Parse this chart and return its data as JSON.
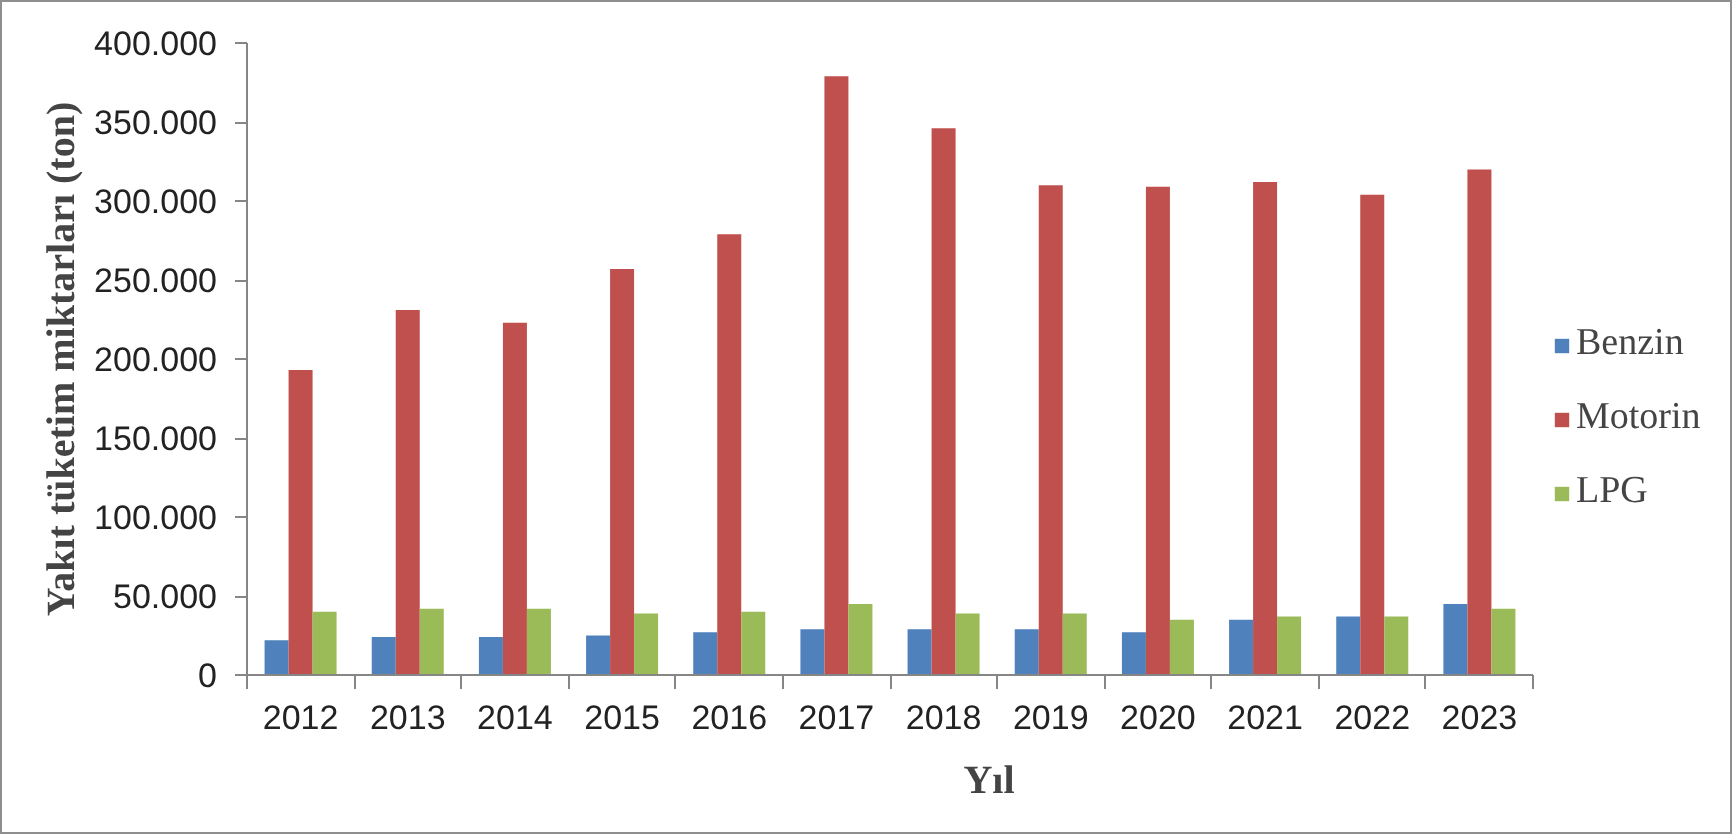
{
  "chart_data": {
    "type": "bar",
    "xlabel": "Yıl",
    "ylabel": "Yakıt tüketim miktarları (ton)",
    "categories": [
      "2012",
      "2013",
      "2014",
      "2015",
      "2016",
      "2017",
      "2018",
      "2019",
      "2020",
      "2021",
      "2022",
      "2023"
    ],
    "series": [
      {
        "name": "Benzin",
        "color": "#4f81bd",
        "values": [
          22000,
          24000,
          24000,
          25000,
          27000,
          29000,
          29000,
          29000,
          27000,
          35000,
          37000,
          45000
        ]
      },
      {
        "name": "Motorin",
        "color": "#c0504d",
        "values": [
          193000,
          231000,
          223000,
          257000,
          279000,
          379000,
          346000,
          310000,
          309000,
          312000,
          304000,
          320000
        ]
      },
      {
        "name": "LPG",
        "color": "#9bbb59",
        "values": [
          40000,
          42000,
          42000,
          39000,
          40000,
          45000,
          39000,
          39000,
          35000,
          37000,
          37000,
          42000
        ]
      }
    ],
    "ylim": [
      0,
      400000
    ],
    "yticks": [
      0,
      {
        "value": 50000,
        "label": "50.000"
      },
      {
        "value": 100000,
        "label": "100.000"
      },
      {
        "value": 150000,
        "label": "150.000"
      },
      {
        "value": 200000,
        "label": "200.000"
      },
      {
        "value": 250000,
        "label": "250.000"
      },
      {
        "value": 300000,
        "label": "300.000"
      },
      {
        "value": 350000,
        "label": "350.000"
      },
      {
        "value": 400000,
        "label": "400.000"
      }
    ],
    "grid": false,
    "legend": "right"
  }
}
